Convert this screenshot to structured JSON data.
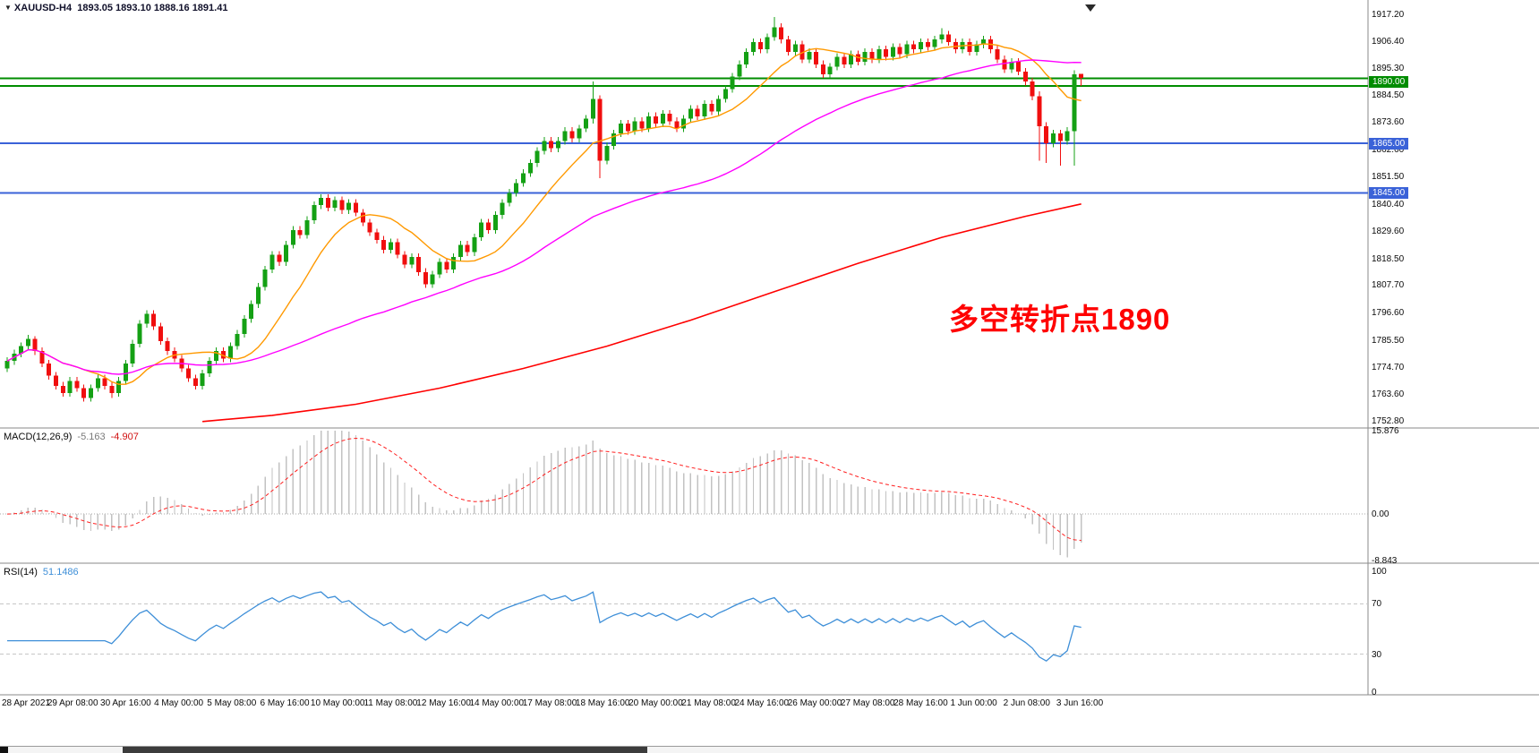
{
  "window": {
    "title": "XAUUSD-H4",
    "quotes": "1893.05 1893.10 1888.16 1891.41"
  },
  "annotation": {
    "text": "多空转折点1890",
    "color": "#FF0000"
  },
  "colors": {
    "up": "#14A014",
    "down": "#F00E0E",
    "ma_fast": "#FF9900",
    "ma_mid": "#FF00FF",
    "ma_slow": "#FF0000",
    "macd_hist": "#C2C2C2",
    "macd_signal": "#FF1E1E",
    "rsi_line": "#3E8FD8",
    "level_green": "#008C00",
    "level_blue": "#3A62D8"
  },
  "main_chart": {
    "price_axis_labels": [
      "1917.20",
      "1906.40",
      "1895.30",
      "1884.50",
      "1873.60",
      "1862.60",
      "1851.50",
      "1840.40",
      "1829.60",
      "1818.50",
      "1807.70",
      "1796.60",
      "1785.50",
      "1774.70",
      "1763.60",
      "1752.80"
    ],
    "levels": [
      {
        "badge": "1890.00",
        "badge_price": 1890.0,
        "color": "#008C00",
        "lines": [
          1891.3,
          1888.3
        ]
      },
      {
        "badge": "1865.00",
        "badge_price": 1865.0,
        "color": "#3A62D8",
        "lines": [
          1865.0
        ]
      },
      {
        "badge": "1845.00",
        "badge_price": 1845.0,
        "color": "#3A62D8",
        "lines": [
          1845.0
        ]
      }
    ]
  },
  "macd": {
    "label": "MACD(12,26,9)",
    "value_main": "-5.163",
    "value_signal": "-4.907",
    "axis_labels": [
      "15.876",
      "0.00",
      "-8.843"
    ]
  },
  "rsi": {
    "label": "RSI(14)",
    "value": "51.1486",
    "axis_labels": [
      "100",
      "70",
      "30",
      "0"
    ]
  },
  "time_axis": {
    "labels": [
      "28 Apr 2021",
      "29 Apr 08:00",
      "30 Apr 16:00",
      "4 May 00:00",
      "5 May 08:00",
      "6 May 16:00",
      "10 May 00:00",
      "11 May 08:00",
      "12 May 16:00",
      "14 May 00:00",
      "17 May 08:00",
      "18 May 16:00",
      "20 May 00:00",
      "21 May 08:00",
      "24 May 16:00",
      "26 May 00:00",
      "27 May 08:00",
      "28 May 16:00",
      "1 Jun 00:00",
      "2 Jun 08:00",
      "3 Jun 16:00"
    ]
  },
  "chart_data": {
    "type": "candlestick",
    "symbol": "XAUUSD",
    "timeframe": "H4",
    "ylim": [
      1752.8,
      1917.2
    ],
    "sma_fast_period": 12,
    "sma_mid_period": 50,
    "slow_ma_points": [
      [
        28,
        1752.5
      ],
      [
        38,
        1755
      ],
      [
        50,
        1759.5
      ],
      [
        62,
        1766
      ],
      [
        74,
        1774
      ],
      [
        86,
        1783
      ],
      [
        98,
        1793.5
      ],
      [
        110,
        1805
      ],
      [
        122,
        1816.5
      ],
      [
        134,
        1827
      ],
      [
        146,
        1835.5
      ],
      [
        154,
        1840.5
      ]
    ],
    "macd": {
      "fast": 12,
      "slow": 26,
      "signal": 9,
      "range": [
        -8.843,
        15.876
      ]
    },
    "rsi": {
      "period": 14,
      "levels": [
        30,
        70
      ],
      "range": [
        0,
        100
      ]
    },
    "candles": [
      [
        1774,
        1778.5,
        1772.5,
        1777
      ],
      [
        1777,
        1781.5,
        1775.5,
        1780
      ],
      [
        1780,
        1784.5,
        1778.5,
        1783
      ],
      [
        1783,
        1787.5,
        1781.5,
        1786
      ],
      [
        1786,
        1787,
        1779.5,
        1781
      ],
      [
        1781,
        1782.5,
        1774.5,
        1776
      ],
      [
        1776,
        1777.5,
        1769.5,
        1771
      ],
      [
        1771,
        1772.5,
        1765.5,
        1767
      ],
      [
        1767,
        1768.5,
        1762.5,
        1764
      ],
      [
        1764,
        1770.5,
        1762.5,
        1769
      ],
      [
        1769,
        1770.5,
        1764.5,
        1766
      ],
      [
        1766,
        1767.5,
        1760.5,
        1762
      ],
      [
        1762,
        1767.5,
        1760.5,
        1766
      ],
      [
        1766,
        1771.5,
        1764.5,
        1770
      ],
      [
        1770,
        1771.5,
        1765.5,
        1767
      ],
      [
        1767,
        1768.5,
        1762,
        1764
      ],
      [
        1764,
        1770.5,
        1762.5,
        1769
      ],
      [
        1769,
        1777.5,
        1767.5,
        1776
      ],
      [
        1776,
        1785.5,
        1774.5,
        1784
      ],
      [
        1784,
        1793.5,
        1782.5,
        1792
      ],
      [
        1792,
        1797.5,
        1790.5,
        1796
      ],
      [
        1796,
        1797.5,
        1789.5,
        1791
      ],
      [
        1791,
        1792.5,
        1783.5,
        1785
      ],
      [
        1785,
        1786.5,
        1779.5,
        1781
      ],
      [
        1781,
        1782.5,
        1776.5,
        1778
      ],
      [
        1778,
        1779.5,
        1772.5,
        1774
      ],
      [
        1774,
        1775.5,
        1768.5,
        1770
      ],
      [
        1770,
        1771.5,
        1765.5,
        1767
      ],
      [
        1767,
        1773.5,
        1765.5,
        1772
      ],
      [
        1772,
        1778.5,
        1770.5,
        1777
      ],
      [
        1777,
        1782.5,
        1775.5,
        1781
      ],
      [
        1781,
        1782.5,
        1776.5,
        1778
      ],
      [
        1778,
        1784.5,
        1776.5,
        1783
      ],
      [
        1783,
        1789.5,
        1781.5,
        1788
      ],
      [
        1788,
        1795.5,
        1786.5,
        1794
      ],
      [
        1794,
        1801.5,
        1792.5,
        1800
      ],
      [
        1800,
        1808.5,
        1798.5,
        1807
      ],
      [
        1807,
        1815.5,
        1805.5,
        1814
      ],
      [
        1814,
        1821.5,
        1812.5,
        1820
      ],
      [
        1820,
        1821.5,
        1815.5,
        1817
      ],
      [
        1817,
        1825.5,
        1815.5,
        1824
      ],
      [
        1824,
        1831.5,
        1822.5,
        1830
      ],
      [
        1830,
        1831.5,
        1826.5,
        1828
      ],
      [
        1828,
        1835.5,
        1826.5,
        1834
      ],
      [
        1834,
        1841.5,
        1832.5,
        1840
      ],
      [
        1840,
        1844.5,
        1838.5,
        1843
      ],
      [
        1843,
        1844.5,
        1837.5,
        1839
      ],
      [
        1839,
        1843.5,
        1837.5,
        1842
      ],
      [
        1842,
        1843.5,
        1836.5,
        1838
      ],
      [
        1838,
        1842.5,
        1836.5,
        1841
      ],
      [
        1841,
        1842.5,
        1835.5,
        1837
      ],
      [
        1837,
        1838.5,
        1831.5,
        1833
      ],
      [
        1833,
        1834.5,
        1827.5,
        1829
      ],
      [
        1829,
        1830.5,
        1824.5,
        1826
      ],
      [
        1826,
        1827.5,
        1820.5,
        1822
      ],
      [
        1822,
        1826.5,
        1820.5,
        1825
      ],
      [
        1825,
        1826.5,
        1818.5,
        1820
      ],
      [
        1820,
        1821.5,
        1814.5,
        1816
      ],
      [
        1816,
        1820.5,
        1814.5,
        1819
      ],
      [
        1819,
        1820.5,
        1811.5,
        1813
      ],
      [
        1813,
        1814.5,
        1806.5,
        1808
      ],
      [
        1808,
        1813.5,
        1806.5,
        1812
      ],
      [
        1812,
        1818.5,
        1810.5,
        1817
      ],
      [
        1817,
        1818.5,
        1812.5,
        1814
      ],
      [
        1814,
        1820.5,
        1812.5,
        1819
      ],
      [
        1819,
        1825.5,
        1817.5,
        1824
      ],
      [
        1824,
        1825.5,
        1819.5,
        1821
      ],
      [
        1821,
        1828.5,
        1819.5,
        1827
      ],
      [
        1827,
        1834.5,
        1825.5,
        1833
      ],
      [
        1833,
        1834.5,
        1828.5,
        1830
      ],
      [
        1830,
        1837.5,
        1828.5,
        1836
      ],
      [
        1836,
        1842.5,
        1834.5,
        1841
      ],
      [
        1841,
        1846.5,
        1839.5,
        1845
      ],
      [
        1845,
        1850.5,
        1843.5,
        1849
      ],
      [
        1849,
        1854.5,
        1847.5,
        1853
      ],
      [
        1853,
        1858.5,
        1851.5,
        1857
      ],
      [
        1857,
        1863.5,
        1855.5,
        1862
      ],
      [
        1862,
        1867.5,
        1860.5,
        1866
      ],
      [
        1866,
        1867.5,
        1861.5,
        1863
      ],
      [
        1863,
        1867.5,
        1861.5,
        1866
      ],
      [
        1866,
        1871.5,
        1864.5,
        1870
      ],
      [
        1870,
        1871.5,
        1865.5,
        1867
      ],
      [
        1867,
        1872.5,
        1865.5,
        1871
      ],
      [
        1871,
        1876.5,
        1869.5,
        1875
      ],
      [
        1875,
        1890,
        1873,
        1883
      ],
      [
        1883,
        1884.5,
        1851,
        1858
      ],
      [
        1858,
        1865.5,
        1856.5,
        1864
      ],
      [
        1864,
        1870.5,
        1862.5,
        1869
      ],
      [
        1869,
        1874.5,
        1867.5,
        1873
      ],
      [
        1873,
        1874.5,
        1868.5,
        1870
      ],
      [
        1870,
        1875.5,
        1868.5,
        1874
      ],
      [
        1874,
        1875.5,
        1869.5,
        1871
      ],
      [
        1871,
        1877.5,
        1869.5,
        1876
      ],
      [
        1876,
        1877.5,
        1871.5,
        1873
      ],
      [
        1873,
        1878.5,
        1871.5,
        1877
      ],
      [
        1877,
        1878.5,
        1872.5,
        1874
      ],
      [
        1874,
        1875.5,
        1869.5,
        1871
      ],
      [
        1871,
        1876.5,
        1869.5,
        1875
      ],
      [
        1875,
        1880.5,
        1873.5,
        1879
      ],
      [
        1879,
        1880.5,
        1874.5,
        1876
      ],
      [
        1876,
        1882.5,
        1874.5,
        1881
      ],
      [
        1881,
        1882.5,
        1876.5,
        1878
      ],
      [
        1878,
        1884.5,
        1876.5,
        1883
      ],
      [
        1883,
        1888.5,
        1881.5,
        1887
      ],
      [
        1887,
        1893.5,
        1885.5,
        1892
      ],
      [
        1892,
        1898.5,
        1890.5,
        1897
      ],
      [
        1897,
        1903.5,
        1895.5,
        1902
      ],
      [
        1902,
        1907.5,
        1900.5,
        1906
      ],
      [
        1906,
        1907.5,
        1901.5,
        1903
      ],
      [
        1903,
        1909.5,
        1901.5,
        1908
      ],
      [
        1908,
        1916.2,
        1906.5,
        1912
      ],
      [
        1912,
        1913.5,
        1905.5,
        1907
      ],
      [
        1907,
        1908.5,
        1900.5,
        1902
      ],
      [
        1902,
        1906.5,
        1900.5,
        1905
      ],
      [
        1905,
        1906.5,
        1897.5,
        1899
      ],
      [
        1899,
        1903.5,
        1897.5,
        1902
      ],
      [
        1902,
        1903.5,
        1895.5,
        1897
      ],
      [
        1897,
        1898.5,
        1891.5,
        1893
      ],
      [
        1893,
        1897.5,
        1891.5,
        1896
      ],
      [
        1896,
        1901.5,
        1894.5,
        1900
      ],
      [
        1900,
        1901.5,
        1895.5,
        1897
      ],
      [
        1897,
        1902.5,
        1895.5,
        1901
      ],
      [
        1901,
        1902.5,
        1896.5,
        1898
      ],
      [
        1898,
        1903.5,
        1896.5,
        1902
      ],
      [
        1902,
        1903.5,
        1897.5,
        1899
      ],
      [
        1899,
        1904.5,
        1897.5,
        1903
      ],
      [
        1903,
        1904.5,
        1898.5,
        1900
      ],
      [
        1900,
        1905.5,
        1898.5,
        1904
      ],
      [
        1904,
        1905.5,
        1899.5,
        1901
      ],
      [
        1901,
        1906.5,
        1899.5,
        1905
      ],
      [
        1905,
        1906.5,
        1901.5,
        1903
      ],
      [
        1903,
        1907.5,
        1901.5,
        1906
      ],
      [
        1906,
        1907.5,
        1902.5,
        1904
      ],
      [
        1904,
        1908.5,
        1902.5,
        1907
      ],
      [
        1907,
        1911.5,
        1905.5,
        1909
      ],
      [
        1909,
        1910.5,
        1904.5,
        1906
      ],
      [
        1906,
        1907.5,
        1901.5,
        1903
      ],
      [
        1903,
        1907.5,
        1901.5,
        1906
      ],
      [
        1906,
        1907.5,
        1900.5,
        1902
      ],
      [
        1902,
        1906.5,
        1900.5,
        1905
      ],
      [
        1905,
        1908.5,
        1903.5,
        1907
      ],
      [
        1907,
        1908.5,
        1901.5,
        1903
      ],
      [
        1903,
        1904.5,
        1897.5,
        1899
      ],
      [
        1899,
        1900.5,
        1893.5,
        1895
      ],
      [
        1895,
        1899.5,
        1893.5,
        1898
      ],
      [
        1898,
        1899.5,
        1892.5,
        1894
      ],
      [
        1894,
        1895.5,
        1888.5,
        1890
      ],
      [
        1890,
        1891.5,
        1882.5,
        1884
      ],
      [
        1884,
        1886,
        1858,
        1872
      ],
      [
        1872,
        1873.5,
        1857,
        1865
      ],
      [
        1865,
        1870.5,
        1863.5,
        1869
      ],
      [
        1869,
        1870.5,
        1856,
        1866
      ],
      [
        1866,
        1871.5,
        1864.5,
        1870
      ],
      [
        1870,
        1894.5,
        1856,
        1893
      ],
      [
        1893.05,
        1893.1,
        1888.16,
        1891.41
      ]
    ]
  }
}
